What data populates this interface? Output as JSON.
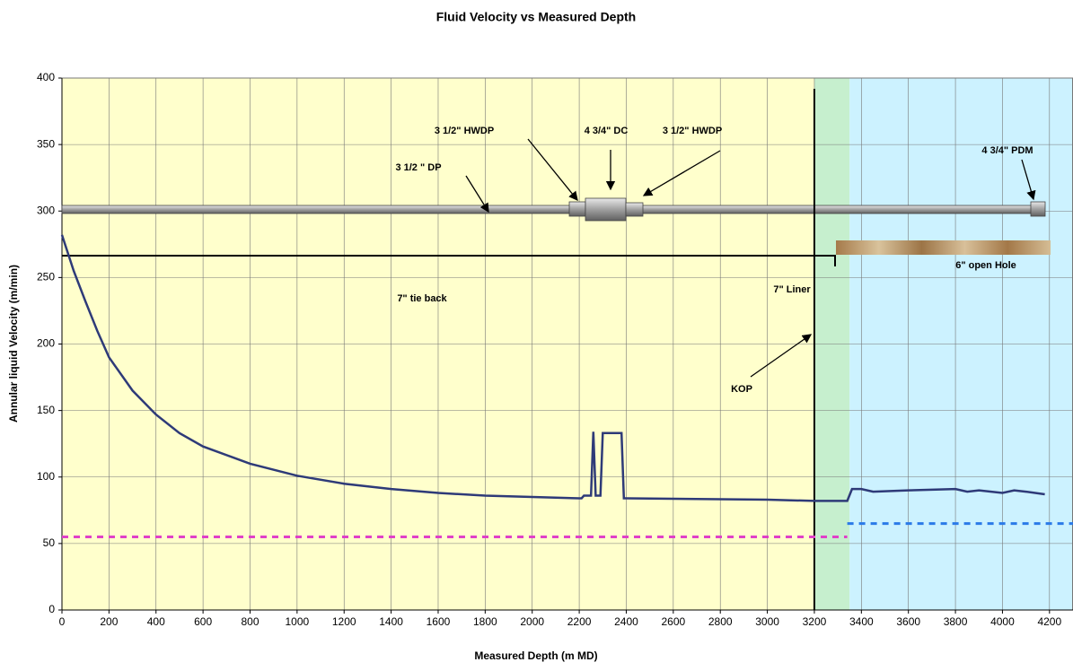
{
  "chart_data": {
    "type": "line",
    "title": "Fluid Velocity vs Measured Depth",
    "x_label": "Measured Depth (m MD)",
    "y_label": "Annular liquid Velocity (m/min)",
    "xlim": [
      0,
      4300
    ],
    "ylim": [
      0,
      400
    ],
    "xticks": [
      0,
      200,
      400,
      600,
      800,
      1000,
      1200,
      1400,
      1600,
      1800,
      2000,
      2200,
      2400,
      2600,
      2800,
      3000,
      3200,
      3400,
      3600,
      3800,
      4000,
      4200
    ],
    "yticks": [
      0,
      50,
      100,
      150,
      200,
      250,
      300,
      350,
      400
    ],
    "grid": true,
    "regions": [
      {
        "from": 0,
        "to": 3200,
        "color": "#ffffcc"
      },
      {
        "from": 3200,
        "to": 3350,
        "color": "#c6efce"
      },
      {
        "from": 3350,
        "to": 4300,
        "color": "#ccf2ff"
      }
    ],
    "vline": {
      "x": 3200,
      "color": "#000000"
    },
    "series": [
      {
        "color": "#2e3a78",
        "dash": false,
        "x": [
          0,
          50,
          100,
          150,
          200,
          300,
          400,
          500,
          600,
          800,
          1000,
          1200,
          1400,
          1600,
          1800,
          2000,
          2200,
          2210,
          2220,
          2250,
          2260,
          2270,
          2290,
          2300,
          2380,
          2390,
          2400,
          3000,
          3200,
          3340,
          3360,
          3400,
          3450,
          3600,
          3800,
          3850,
          3900,
          4000,
          4050,
          4100,
          4180
        ],
        "values": [
          282,
          255,
          232,
          210,
          190,
          165,
          147,
          133,
          123,
          110,
          101,
          95,
          91,
          88,
          86,
          85,
          84,
          84,
          86,
          86,
          134,
          86,
          86,
          133,
          133,
          84,
          84,
          83,
          82,
          82,
          91,
          91,
          89,
          90,
          91,
          89,
          90,
          88,
          90,
          89,
          87
        ]
      },
      {
        "color": "#e040c8",
        "dash": true,
        "x": [
          0,
          3340
        ],
        "values": [
          55,
          55
        ]
      },
      {
        "color": "#2a7ae8",
        "dash": true,
        "x": [
          3340,
          4300
        ],
        "values": [
          65,
          65
        ]
      }
    ],
    "annotations": [
      "3 1/2\" HWDP",
      "4 3/4\" DC",
      "3 1/2\" HWDP",
      "4 3/4\" PDM",
      "3 1/2 \" DP",
      "7\" tie back",
      "7\" Liner",
      "6\" open Hole",
      "KOP"
    ]
  }
}
